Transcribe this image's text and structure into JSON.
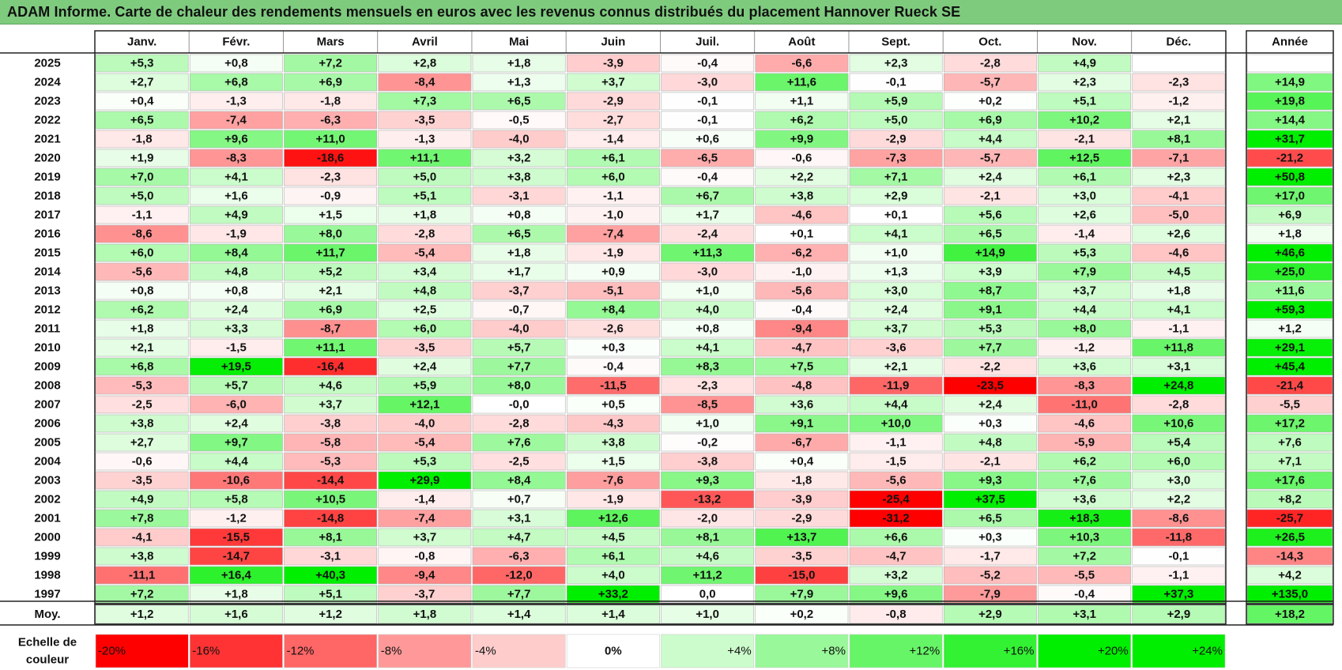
{
  "title": "ADAM Informe. Carte de chaleur des rendements mensuels en euros avec les revenus connus distribués du placement Hannover Rueck SE",
  "colors": {
    "title_bg": "#7ecb7e",
    "strong_red": "#ff0000",
    "strong_green": "#00ee00",
    "neutral": "#ffffff"
  },
  "chart_data": {
    "type": "heatmap",
    "columns": [
      "Janv.",
      "Févr.",
      "Mars",
      "Avril",
      "Mai",
      "Juin",
      "Juil.",
      "Août",
      "Sept.",
      "Oct.",
      "Nov.",
      "Déc."
    ],
    "year_header": "Année",
    "rows": [
      {
        "year": "2025",
        "values": [
          "+5,3",
          "+0,8",
          "+7,2",
          "+2,8",
          "+1,8",
          "-3,9",
          "-0,4",
          "-6,6",
          "+2,3",
          "-2,8",
          "+4,9",
          ""
        ],
        "annual": ""
      },
      {
        "year": "2024",
        "values": [
          "+2,7",
          "+6,8",
          "+6,9",
          "-8,4",
          "+1,3",
          "+3,7",
          "-3,0",
          "+11,6",
          "-0,1",
          "-5,7",
          "+2,3",
          "-2,3"
        ],
        "annual": "+14,9"
      },
      {
        "year": "2023",
        "values": [
          "+0,4",
          "-1,3",
          "-1,8",
          "+7,3",
          "+6,5",
          "-2,9",
          "-0,1",
          "+1,1",
          "+5,9",
          "+0,2",
          "+5,1",
          "-1,2"
        ],
        "annual": "+19,8"
      },
      {
        "year": "2022",
        "values": [
          "+6,5",
          "-7,4",
          "-6,3",
          "-3,5",
          "-0,5",
          "-2,7",
          "-0,1",
          "+6,2",
          "+5,0",
          "+6,9",
          "+10,2",
          "+2,1"
        ],
        "annual": "+14,4"
      },
      {
        "year": "2021",
        "values": [
          "-1,8",
          "+9,6",
          "+11,0",
          "-1,3",
          "-4,0",
          "-1,4",
          "+0,6",
          "+9,9",
          "-2,9",
          "+4,4",
          "-2,1",
          "+8,1"
        ],
        "annual": "+31,7"
      },
      {
        "year": "2020",
        "values": [
          "+1,9",
          "-8,3",
          "-18,6",
          "+11,1",
          "+3,2",
          "+6,1",
          "-6,5",
          "-0,6",
          "-7,3",
          "-5,7",
          "+12,5",
          "-7,1"
        ],
        "annual": "-21,2"
      },
      {
        "year": "2019",
        "values": [
          "+7,0",
          "+4,1",
          "-2,3",
          "+5,0",
          "+3,8",
          "+6,0",
          "-0,4",
          "+2,2",
          "+7,1",
          "+2,4",
          "+6,1",
          "+2,3"
        ],
        "annual": "+50,8"
      },
      {
        "year": "2018",
        "values": [
          "+5,0",
          "+1,6",
          "-0,9",
          "+5,1",
          "-3,1",
          "-1,1",
          "+6,7",
          "+3,8",
          "+2,9",
          "-2,1",
          "+3,0",
          "-4,1"
        ],
        "annual": "+17,0"
      },
      {
        "year": "2017",
        "values": [
          "-1,1",
          "+4,9",
          "+1,5",
          "+1,8",
          "+0,8",
          "-1,0",
          "+1,7",
          "-4,6",
          "+0,1",
          "+5,6",
          "+2,6",
          "-5,0"
        ],
        "annual": "+6,9"
      },
      {
        "year": "2016",
        "values": [
          "-8,6",
          "-1,9",
          "+8,0",
          "-2,8",
          "+6,5",
          "-7,4",
          "-2,4",
          "+0,1",
          "+4,1",
          "+6,5",
          "-1,4",
          "+2,6"
        ],
        "annual": "+1,8"
      },
      {
        "year": "2015",
        "values": [
          "+6,0",
          "+8,4",
          "+11,7",
          "-5,4",
          "+1,8",
          "-1,9",
          "+11,3",
          "-6,2",
          "+1,0",
          "+14,9",
          "+5,3",
          "-4,6"
        ],
        "annual": "+46,6"
      },
      {
        "year": "2014",
        "values": [
          "-5,6",
          "+4,8",
          "+5,2",
          "+3,4",
          "+1,7",
          "+0,9",
          "-3,0",
          "-1,0",
          "+1,3",
          "+3,9",
          "+7,9",
          "+4,5"
        ],
        "annual": "+25,0"
      },
      {
        "year": "2013",
        "values": [
          "+0,8",
          "+0,8",
          "+2,1",
          "+4,8",
          "-3,7",
          "-5,1",
          "+1,0",
          "-5,6",
          "+3,0",
          "+8,7",
          "+3,7",
          "+1,8"
        ],
        "annual": "+11,6"
      },
      {
        "year": "2012",
        "values": [
          "+6,2",
          "+2,4",
          "+6,9",
          "+2,5",
          "-0,7",
          "+8,4",
          "+4,0",
          "-0,4",
          "+2,4",
          "+9,1",
          "+4,4",
          "+4,1"
        ],
        "annual": "+59,3"
      },
      {
        "year": "2011",
        "values": [
          "+1,8",
          "+3,3",
          "-8,7",
          "+6,0",
          "-4,0",
          "-2,6",
          "+0,8",
          "-9,4",
          "+3,7",
          "+5,3",
          "+8,0",
          "-1,1"
        ],
        "annual": "+1,2"
      },
      {
        "year": "2010",
        "values": [
          "+2,1",
          "-1,5",
          "+11,1",
          "-3,5",
          "+5,7",
          "+0,3",
          "+4,1",
          "-4,7",
          "-3,6",
          "+7,7",
          "-1,2",
          "+11,8"
        ],
        "annual": "+29,1"
      },
      {
        "year": "2009",
        "values": [
          "+6,8",
          "+19,5",
          "-16,4",
          "+2,4",
          "+7,7",
          "-0,4",
          "+8,3",
          "+7,5",
          "+2,1",
          "-2,2",
          "+3,6",
          "+3,1"
        ],
        "annual": "+45,4"
      },
      {
        "year": "2008",
        "values": [
          "-5,3",
          "+5,7",
          "+4,6",
          "+5,9",
          "+8,0",
          "-11,5",
          "-2,3",
          "-4,8",
          "-11,9",
          "-23,5",
          "-8,3",
          "+24,8"
        ],
        "annual": "-21,4"
      },
      {
        "year": "2007",
        "values": [
          "-2,5",
          "-6,0",
          "+3,7",
          "+12,1",
          "-0,0",
          "+0,5",
          "-8,5",
          "+3,6",
          "+4,4",
          "+2,4",
          "-11,0",
          "-2,8"
        ],
        "annual": "-5,5"
      },
      {
        "year": "2006",
        "values": [
          "+3,8",
          "+2,4",
          "-3,8",
          "-4,0",
          "-2,8",
          "-4,3",
          "+1,0",
          "+9,1",
          "+10,0",
          "+0,3",
          "-4,6",
          "+10,6"
        ],
        "annual": "+17,2"
      },
      {
        "year": "2005",
        "values": [
          "+2,7",
          "+9,7",
          "-5,8",
          "-5,4",
          "+7,6",
          "+3,8",
          "-0,2",
          "-6,7",
          "-1,1",
          "+4,8",
          "-5,9",
          "+5,4"
        ],
        "annual": "+7,6"
      },
      {
        "year": "2004",
        "values": [
          "-0,6",
          "+4,4",
          "-5,3",
          "+5,3",
          "-2,5",
          "+1,5",
          "-3,8",
          "+0,4",
          "-1,5",
          "-2,1",
          "+6,2",
          "+6,0"
        ],
        "annual": "+7,1"
      },
      {
        "year": "2003",
        "values": [
          "-3,5",
          "-10,6",
          "-14,4",
          "+29,9",
          "+8,4",
          "-7,6",
          "+9,3",
          "-1,8",
          "-5,6",
          "+9,3",
          "+7,6",
          "+3,0"
        ],
        "annual": "+17,6"
      },
      {
        "year": "2002",
        "values": [
          "+4,9",
          "+5,8",
          "+10,5",
          "-1,4",
          "+0,7",
          "-1,9",
          "-13,2",
          "-3,9",
          "-25,4",
          "+37,5",
          "+3,6",
          "+2,2"
        ],
        "annual": "+8,2"
      },
      {
        "year": "2001",
        "values": [
          "+7,8",
          "-1,2",
          "-14,8",
          "-7,4",
          "+3,1",
          "+12,6",
          "-2,0",
          "-2,9",
          "-31,2",
          "+6,5",
          "+18,3",
          "-8,6"
        ],
        "annual": "-25,7"
      },
      {
        "year": "2000",
        "values": [
          "-4,1",
          "-15,5",
          "+8,1",
          "+3,7",
          "+4,7",
          "+4,5",
          "+8,1",
          "+13,7",
          "+6,6",
          "+0,3",
          "+10,3",
          "-11,8"
        ],
        "annual": "+26,5"
      },
      {
        "year": "1999",
        "values": [
          "+3,8",
          "-14,7",
          "-3,1",
          "-0,8",
          "-6,3",
          "+6,1",
          "+4,6",
          "-3,5",
          "-4,7",
          "-1,7",
          "+7,2",
          "-0,1"
        ],
        "annual": "-14,3"
      },
      {
        "year": "1998",
        "values": [
          "-11,1",
          "+16,4",
          "+40,3",
          "-9,4",
          "-12,0",
          "+4,0",
          "+11,2",
          "-15,0",
          "+3,2",
          "-5,2",
          "-5,5",
          "-1,1"
        ],
        "annual": "+4,2"
      },
      {
        "year": "1997",
        "values": [
          "+7,2",
          "+1,8",
          "+5,1",
          "-3,7",
          "+7,7",
          "+33,2",
          "0,0",
          "+7,9",
          "+9,6",
          "-7,9",
          "-0,4",
          "+37,3"
        ],
        "annual": "+135,0"
      }
    ],
    "average": {
      "label": "Moy.",
      "values": [
        "+1,2",
        "+1,6",
        "+1,2",
        "+1,8",
        "+1,4",
        "+1,4",
        "+1,0",
        "+0,2",
        "-0,8",
        "+2,9",
        "+3,1",
        "+2,9"
      ],
      "annual": "+18,2"
    },
    "scale": {
      "label_line1": "Echelle de",
      "label_line2": "couleur",
      "stops": [
        "-20%",
        "-16%",
        "-12%",
        "-8%",
        "-4%",
        "0%",
        "+4%",
        "+8%",
        "+12%",
        "+16%",
        "+20%",
        "+24%"
      ]
    }
  }
}
